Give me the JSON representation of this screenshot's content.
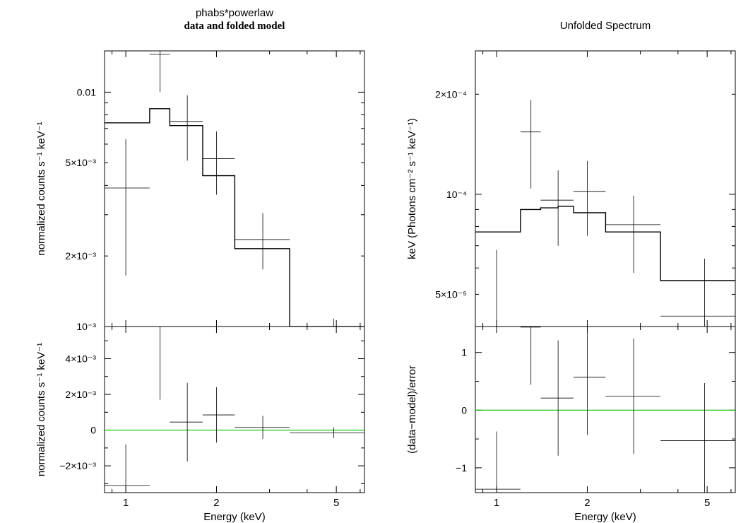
{
  "left_titles": {
    "line1": "phabs*powerlaw",
    "line2": "data and folded model"
  },
  "right_titles": {
    "line1": "Unfolded Spectrum"
  },
  "chart_data": [
    {
      "id": "left-top",
      "type": "scatter",
      "title": "phabs*powerlaw / data and folded model",
      "xscale": "log",
      "yscale": "log",
      "xlim": [
        0.85,
        6.2
      ],
      "ylim": [
        0.001,
        0.015
      ],
      "ylabel": "normalized counts s⁻¹ keV⁻¹",
      "yticks": [
        {
          "value": 0.01,
          "label": "0.01"
        },
        {
          "value": 0.005,
          "label": "5×10⁻³"
        },
        {
          "value": 0.002,
          "label": "2×10⁻³"
        },
        {
          "value": 0.001,
          "label": "10⁻³"
        }
      ],
      "data_points": [
        {
          "x": 1.0,
          "xlo": 0.85,
          "xhi": 1.2,
          "y": 0.0039,
          "ylo": 0.00165,
          "yhi": 0.0063
        },
        {
          "x": 1.3,
          "xlo": 1.2,
          "xhi": 1.4,
          "y": 0.0145,
          "ylo": 0.01,
          "yhi": 0.02
        },
        {
          "x": 1.6,
          "xlo": 1.4,
          "xhi": 1.8,
          "y": 0.0075,
          "ylo": 0.0051,
          "yhi": 0.0097
        },
        {
          "x": 2.0,
          "xlo": 1.8,
          "xhi": 2.3,
          "y": 0.0052,
          "ylo": 0.00365,
          "yhi": 0.0068
        },
        {
          "x": 2.85,
          "xlo": 2.3,
          "xhi": 3.5,
          "y": 0.00235,
          "ylo": 0.00175,
          "yhi": 0.00305
        },
        {
          "x": 4.9,
          "xlo": 3.5,
          "xhi": 6.2,
          "y": 0.0009,
          "ylo": 0.0005,
          "yhi": 0.00108
        }
      ],
      "model_steps": [
        {
          "xlo": 0.85,
          "xhi": 1.2,
          "y": 0.0074
        },
        {
          "xlo": 1.2,
          "xhi": 1.4,
          "y": 0.0085
        },
        {
          "xlo": 1.4,
          "xhi": 1.8,
          "y": 0.0072
        },
        {
          "xlo": 1.8,
          "xhi": 2.3,
          "y": 0.0044
        },
        {
          "xlo": 2.3,
          "xhi": 3.5,
          "y": 0.00215
        },
        {
          "xlo": 3.5,
          "xhi": 6.2,
          "y": 0.0007
        }
      ]
    },
    {
      "id": "left-bottom",
      "type": "scatter",
      "xscale": "log",
      "yscale": "linear",
      "xlim": [
        0.85,
        6.2
      ],
      "ylim": [
        -0.0035,
        0.0058
      ],
      "xlabel": "Energy (keV)",
      "ylabel": "normalized counts s⁻¹ keV⁻¹",
      "xticks": [
        {
          "value": 1,
          "label": "1"
        },
        {
          "value": 2,
          "label": "2"
        },
        {
          "value": 5,
          "label": "5"
        }
      ],
      "yticks": [
        {
          "value": 0.004,
          "label": "4×10⁻³"
        },
        {
          "value": 0.002,
          "label": "2×10⁻³"
        },
        {
          "value": 0,
          "label": "0"
        },
        {
          "value": -0.002,
          "label": "−2×10⁻³"
        }
      ],
      "zero_line_color": "#00c000",
      "data_points": [
        {
          "x": 1.0,
          "xlo": 0.85,
          "xhi": 1.2,
          "y": -0.0031,
          "ylo": -0.0054,
          "yhi": -0.0008
        },
        {
          "x": 1.3,
          "xlo": 1.2,
          "xhi": 1.4,
          "y": 0.0058,
          "ylo": 0.0017,
          "yhi": 0.0099
        },
        {
          "x": 1.6,
          "xlo": 1.4,
          "xhi": 1.8,
          "y": 0.00045,
          "ylo": -0.00175,
          "yhi": 0.00265
        },
        {
          "x": 2.0,
          "xlo": 1.8,
          "xhi": 2.3,
          "y": 0.00085,
          "ylo": -0.0007,
          "yhi": 0.0024
        },
        {
          "x": 2.85,
          "xlo": 2.3,
          "xhi": 3.5,
          "y": 0.00015,
          "ylo": -0.0005,
          "yhi": 0.0008
        },
        {
          "x": 4.9,
          "xlo": 3.5,
          "xhi": 6.2,
          "y": -0.00015,
          "ylo": -0.00045,
          "yhi": 0.00015
        }
      ]
    },
    {
      "id": "right-top",
      "type": "scatter",
      "title": "Unfolded Spectrum",
      "xscale": "log",
      "yscale": "log",
      "xlim": [
        0.85,
        6.2
      ],
      "ylim": [
        4e-05,
        0.00027
      ],
      "ylabel": "keV (Photons cm⁻² s⁻¹ keV⁻¹)",
      "yticks": [
        {
          "value": 0.0002,
          "label": "2×10⁻⁴"
        },
        {
          "value": 0.0001,
          "label": "10⁻⁴"
        },
        {
          "value": 5e-05,
          "label": "5×10⁻⁵"
        }
      ],
      "data_points": [
        {
          "x": 1.0,
          "xlo": 0.85,
          "xhi": 1.2,
          "y": 3.3e-05,
          "ylo": 2e-05,
          "yhi": 6.8e-05
        },
        {
          "x": 1.3,
          "xlo": 1.2,
          "xhi": 1.4,
          "y": 0.000154,
          "ylo": 0.000104,
          "yhi": 0.000192
        },
        {
          "x": 1.6,
          "xlo": 1.4,
          "xhi": 1.8,
          "y": 9.6e-05,
          "ylo": 7e-05,
          "yhi": 0.000118
        },
        {
          "x": 2.0,
          "xlo": 1.8,
          "xhi": 2.3,
          "y": 0.000102,
          "ylo": 7.5e-05,
          "yhi": 0.000126
        },
        {
          "x": 2.85,
          "xlo": 2.3,
          "xhi": 3.5,
          "y": 8.1e-05,
          "ylo": 5.8e-05,
          "yhi": 9.9e-05
        },
        {
          "x": 4.9,
          "xlo": 3.5,
          "xhi": 6.2,
          "y": 4.3e-05,
          "ylo": 3e-05,
          "yhi": 6.4e-05
        }
      ],
      "model_steps": [
        {
          "xlo": 0.85,
          "xhi": 1.2,
          "y": 7.7e-05
        },
        {
          "xlo": 1.2,
          "xhi": 1.4,
          "y": 9e-05
        },
        {
          "xlo": 1.4,
          "xhi": 1.6,
          "y": 9.1e-05
        },
        {
          "xlo": 1.6,
          "xhi": 1.8,
          "y": 9.2e-05
        },
        {
          "xlo": 1.8,
          "xhi": 2.3,
          "y": 8.8e-05
        },
        {
          "xlo": 2.3,
          "xhi": 3.5,
          "y": 7.7e-05
        },
        {
          "xlo": 3.5,
          "xhi": 6.2,
          "y": 5.5e-05
        }
      ]
    },
    {
      "id": "right-bottom",
      "type": "scatter",
      "xscale": "log",
      "yscale": "linear",
      "xlim": [
        0.85,
        6.2
      ],
      "ylim": [
        -1.43,
        1.45
      ],
      "xlabel": "Energy (keV)",
      "ylabel": "(data−model)/error",
      "xticks": [
        {
          "value": 1,
          "label": "1"
        },
        {
          "value": 2,
          "label": "2"
        },
        {
          "value": 5,
          "label": "5"
        }
      ],
      "yticks": [
        {
          "value": 1,
          "label": "1"
        },
        {
          "value": 0,
          "label": "0"
        },
        {
          "value": -1,
          "label": "−1"
        }
      ],
      "zero_line_color": "#00c000",
      "data_points": [
        {
          "x": 1.0,
          "xlo": 0.85,
          "xhi": 1.2,
          "y": -1.37,
          "ylo": -2.37,
          "yhi": -0.37
        },
        {
          "x": 1.3,
          "xlo": 1.2,
          "xhi": 1.4,
          "y": 1.44,
          "ylo": 0.44,
          "yhi": 2.44
        },
        {
          "x": 1.6,
          "xlo": 1.4,
          "xhi": 1.8,
          "y": 0.21,
          "ylo": -0.79,
          "yhi": 1.21
        },
        {
          "x": 2.0,
          "xlo": 1.8,
          "xhi": 2.3,
          "y": 0.57,
          "ylo": -0.43,
          "yhi": 1.57
        },
        {
          "x": 2.85,
          "xlo": 2.3,
          "xhi": 3.5,
          "y": 0.24,
          "ylo": -0.76,
          "yhi": 1.24
        },
        {
          "x": 4.9,
          "xlo": 3.5,
          "xhi": 6.2,
          "y": -0.53,
          "ylo": -1.53,
          "yhi": 0.47
        }
      ]
    }
  ]
}
